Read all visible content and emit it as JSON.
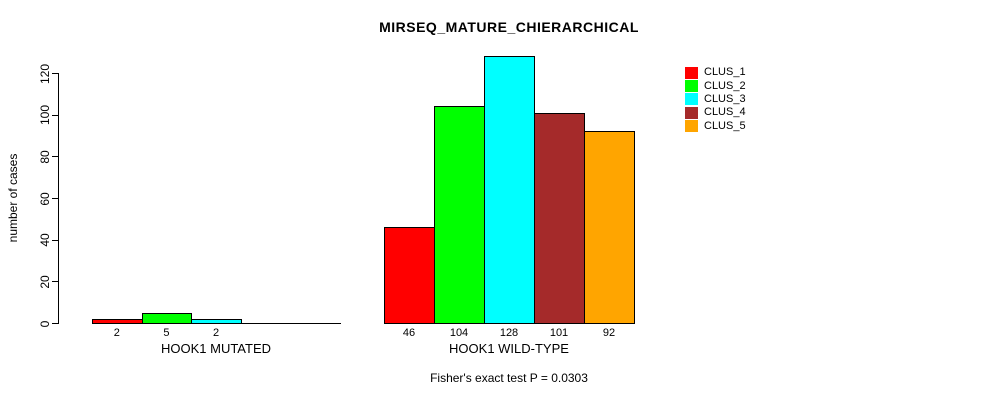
{
  "chart_data": {
    "type": "bar",
    "title": "MIRSEQ_MATURE_CHIERARCHICAL",
    "xlabel": "",
    "ylabel": "number of cases",
    "ylim": [
      0,
      128
    ],
    "y_ticks": [
      0,
      20,
      40,
      60,
      80,
      100,
      120
    ],
    "grid": false,
    "legend_position": "top-right-outside",
    "series_names": [
      "CLUS_1",
      "CLUS_2",
      "CLUS_3",
      "CLUS_4",
      "CLUS_5"
    ],
    "series_colors": [
      "#FF0000",
      "#00FF00",
      "#00FFFF",
      "#A52A2A",
      "#FFA500"
    ],
    "groups": [
      {
        "label": "HOOK1 MUTATED",
        "values": [
          2,
          5,
          2,
          0,
          0
        ],
        "value_labels": [
          "2",
          "5",
          "2",
          "",
          ""
        ]
      },
      {
        "label": "HOOK1 WILD-TYPE",
        "values": [
          46,
          104,
          128,
          101,
          92
        ],
        "value_labels": [
          "46",
          "104",
          "128",
          "101",
          "92"
        ]
      }
    ],
    "footnote": "Fisher's exact test P = 0.0303"
  },
  "colors": {
    "background": "#FFFFFF",
    "axis": "#000000",
    "text": "#000000"
  }
}
